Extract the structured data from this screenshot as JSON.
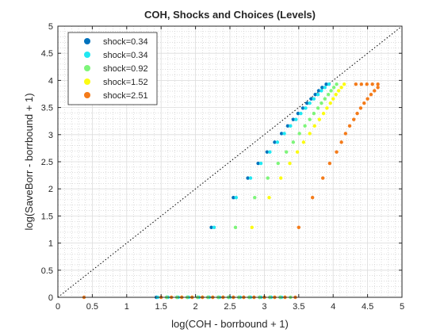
{
  "chart_data": {
    "type": "scatter",
    "title": "COH, Shocks and Choices (Levels)",
    "xlabel": "log(COH - borrbound + 1)",
    "ylabel": "log(SaveBorr - borrbound + 1)",
    "xlim": [
      0,
      5
    ],
    "ylim": [
      0,
      5
    ],
    "xticks": [
      "0",
      "0.5",
      "1",
      "1.5",
      "2",
      "2.5",
      "3",
      "3.5",
      "4",
      "4.5",
      "5"
    ],
    "yticks": [
      "0",
      "0.5",
      "1",
      "1.5",
      "2",
      "2.5",
      "3",
      "3.5",
      "4",
      "4.5",
      "5"
    ],
    "grid": true,
    "minor_grid": true,
    "legend_position": "top-left",
    "reference_line": {
      "style": "dotted",
      "color": "#000000",
      "x": [
        0,
        5
      ],
      "y": [
        0,
        5
      ]
    },
    "series": [
      {
        "name": "shock=0.34",
        "color": "#0072bd",
        "points": [
          [
            1.43,
            0.0
          ],
          [
            1.58,
            0.0
          ],
          [
            1.73,
            0.0
          ],
          [
            1.88,
            0.0
          ],
          [
            2.03,
            0.0
          ],
          [
            2.18,
            0.0
          ],
          [
            2.33,
            0.0
          ],
          [
            2.48,
            0.0
          ],
          [
            2.63,
            0.0
          ],
          [
            2.78,
            0.0
          ],
          [
            2.93,
            0.0
          ],
          [
            3.08,
            0.0
          ],
          [
            3.23,
            0.0
          ],
          [
            2.23,
            1.29
          ],
          [
            2.55,
            1.84
          ],
          [
            2.76,
            2.2
          ],
          [
            2.91,
            2.47
          ],
          [
            3.04,
            2.68
          ],
          [
            3.15,
            2.86
          ],
          [
            3.25,
            3.02
          ],
          [
            3.34,
            3.16
          ],
          [
            3.42,
            3.28
          ],
          [
            3.49,
            3.39
          ],
          [
            3.56,
            3.49
          ],
          [
            3.62,
            3.58
          ],
          [
            3.68,
            3.66
          ],
          [
            3.74,
            3.74
          ],
          [
            3.79,
            3.81
          ],
          [
            3.84,
            3.87
          ],
          [
            3.9,
            3.93
          ]
        ]
      },
      {
        "name": "shock=0.34",
        "color": "#21e8f2",
        "points": [
          [
            1.45,
            0.0
          ],
          [
            1.6,
            0.0
          ],
          [
            1.75,
            0.0
          ],
          [
            1.9,
            0.0
          ],
          [
            2.05,
            0.0
          ],
          [
            2.2,
            0.0
          ],
          [
            2.35,
            0.0
          ],
          [
            2.5,
            0.0
          ],
          [
            2.65,
            0.0
          ],
          [
            2.8,
            0.0
          ],
          [
            2.95,
            0.0
          ],
          [
            3.1,
            0.0
          ],
          [
            3.25,
            0.0
          ],
          [
            2.27,
            1.29
          ],
          [
            2.59,
            1.84
          ],
          [
            2.8,
            2.2
          ],
          [
            2.95,
            2.47
          ],
          [
            3.08,
            2.68
          ],
          [
            3.19,
            2.86
          ],
          [
            3.29,
            3.02
          ],
          [
            3.38,
            3.16
          ],
          [
            3.46,
            3.28
          ],
          [
            3.53,
            3.39
          ],
          [
            3.6,
            3.49
          ],
          [
            3.66,
            3.58
          ],
          [
            3.72,
            3.66
          ],
          [
            3.78,
            3.74
          ],
          [
            3.83,
            3.81
          ],
          [
            3.88,
            3.87
          ],
          [
            3.94,
            3.93
          ]
        ]
      },
      {
        "name": "shock=0.92",
        "color": "#7ef57a",
        "points": [
          [
            1.58,
            0.0
          ],
          [
            1.73,
            0.0
          ],
          [
            1.88,
            0.0
          ],
          [
            2.03,
            0.0
          ],
          [
            2.18,
            0.0
          ],
          [
            2.33,
            0.0
          ],
          [
            2.48,
            0.0
          ],
          [
            2.63,
            0.0
          ],
          [
            2.78,
            0.0
          ],
          [
            2.93,
            0.0
          ],
          [
            3.08,
            0.0
          ],
          [
            3.23,
            0.0
          ],
          [
            3.38,
            0.0
          ],
          [
            2.58,
            1.29
          ],
          [
            2.86,
            1.84
          ],
          [
            3.05,
            2.2
          ],
          [
            3.2,
            2.47
          ],
          [
            3.32,
            2.68
          ],
          [
            3.42,
            2.86
          ],
          [
            3.51,
            3.02
          ],
          [
            3.59,
            3.16
          ],
          [
            3.66,
            3.28
          ],
          [
            3.72,
            3.39
          ],
          [
            3.78,
            3.49
          ],
          [
            3.83,
            3.58
          ],
          [
            3.88,
            3.66
          ],
          [
            3.93,
            3.74
          ],
          [
            3.97,
            3.81
          ],
          [
            4.01,
            3.87
          ],
          [
            4.05,
            3.93
          ]
        ]
      },
      {
        "name": "shock=1.52",
        "color": "#fcfc12",
        "points": [
          [
            1.8,
            0.0
          ],
          [
            1.95,
            0.0
          ],
          [
            2.1,
            0.0
          ],
          [
            2.25,
            0.0
          ],
          [
            2.4,
            0.0
          ],
          [
            2.55,
            0.0
          ],
          [
            2.7,
            0.0
          ],
          [
            2.85,
            0.0
          ],
          [
            3.0,
            0.0
          ],
          [
            3.15,
            0.0
          ],
          [
            3.3,
            0.0
          ],
          [
            2.82,
            1.29
          ],
          [
            3.07,
            1.84
          ],
          [
            3.24,
            2.2
          ],
          [
            3.37,
            2.47
          ],
          [
            3.48,
            2.68
          ],
          [
            3.57,
            2.86
          ],
          [
            3.66,
            3.02
          ],
          [
            3.73,
            3.16
          ],
          [
            3.8,
            3.28
          ],
          [
            3.86,
            3.39
          ],
          [
            3.91,
            3.49
          ],
          [
            3.96,
            3.58
          ],
          [
            4.0,
            3.66
          ],
          [
            4.04,
            3.74
          ],
          [
            4.08,
            3.81
          ],
          [
            4.12,
            3.87
          ],
          [
            4.16,
            3.93
          ]
        ]
      },
      {
        "name": "shock=2.51",
        "color": "#f47b1a",
        "points": [
          [
            0.38,
            0.0
          ],
          [
            1.5,
            0.0
          ],
          [
            1.65,
            0.0
          ],
          [
            1.8,
            0.0
          ],
          [
            1.95,
            0.0
          ],
          [
            2.1,
            0.0
          ],
          [
            2.25,
            0.0
          ],
          [
            2.4,
            0.0
          ],
          [
            2.55,
            0.0
          ],
          [
            2.7,
            0.0
          ],
          [
            2.85,
            0.0
          ],
          [
            3.0,
            0.0
          ],
          [
            3.15,
            0.0
          ],
          [
            3.3,
            0.0
          ],
          [
            3.45,
            0.0
          ],
          [
            3.5,
            1.29
          ],
          [
            3.7,
            1.84
          ],
          [
            3.85,
            2.2
          ],
          [
            3.95,
            2.47
          ],
          [
            4.05,
            2.68
          ],
          [
            4.12,
            2.86
          ],
          [
            4.18,
            3.02
          ],
          [
            4.24,
            3.16
          ],
          [
            4.3,
            3.28
          ],
          [
            4.35,
            3.39
          ],
          [
            4.4,
            3.49
          ],
          [
            4.45,
            3.58
          ],
          [
            4.5,
            3.66
          ],
          [
            4.55,
            3.74
          ],
          [
            4.6,
            3.81
          ],
          [
            4.65,
            3.87
          ],
          [
            4.33,
            3.93
          ],
          [
            4.41,
            3.93
          ],
          [
            4.49,
            3.93
          ],
          [
            4.57,
            3.93
          ],
          [
            4.65,
            3.93
          ]
        ]
      }
    ]
  }
}
